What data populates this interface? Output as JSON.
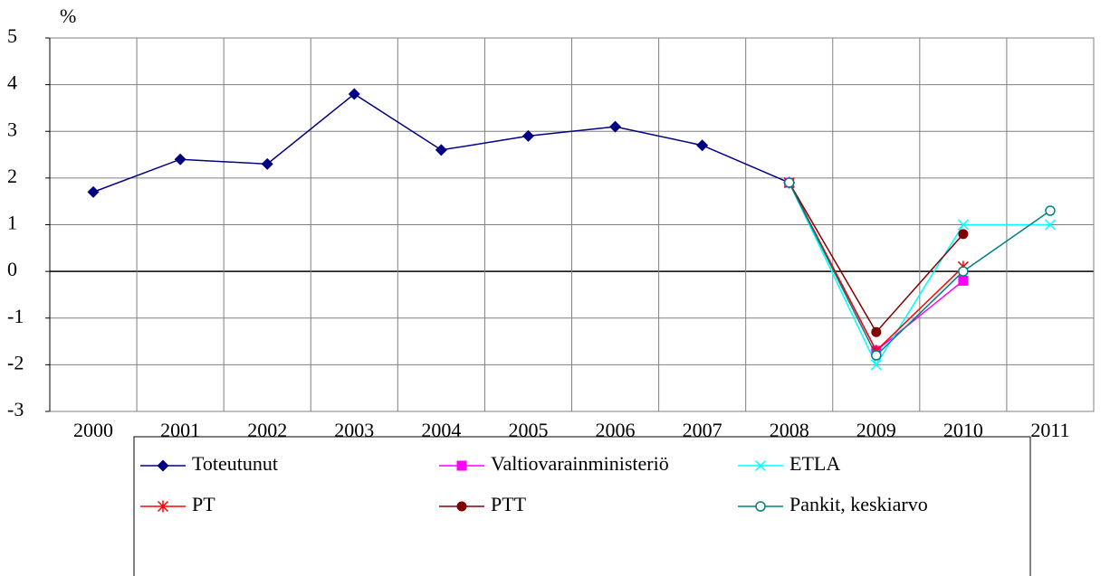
{
  "chart_data": {
    "type": "line",
    "y_label": "%",
    "categories": [
      "2000",
      "2001",
      "2002",
      "2003",
      "2004",
      "2005",
      "2006",
      "2007",
      "2008",
      "2009",
      "2010",
      "2011"
    ],
    "ylim": [
      -3,
      5
    ],
    "yticks": [
      -3,
      -2,
      -1,
      0,
      1,
      2,
      3,
      4,
      5
    ],
    "grid": true,
    "series": [
      {
        "name": "Toteutunut",
        "color": "#000080",
        "marker": "diamond",
        "values": [
          1.7,
          2.4,
          2.3,
          3.8,
          2.6,
          2.9,
          3.1,
          2.7,
          1.9,
          null,
          null,
          null
        ]
      },
      {
        "name": "Valtiovarainministeriö",
        "color": "#ff00ff",
        "marker": "square",
        "values": [
          null,
          null,
          null,
          null,
          null,
          null,
          null,
          null,
          1.9,
          -1.7,
          -0.2,
          null
        ]
      },
      {
        "name": "ETLA",
        "color": "#00ffff",
        "marker": "x",
        "values": [
          null,
          null,
          null,
          null,
          null,
          null,
          null,
          null,
          1.9,
          -2.0,
          1.0,
          1.0
        ]
      },
      {
        "name": "PT",
        "color": "#ff0000",
        "marker": "asterisk",
        "values": [
          null,
          null,
          null,
          null,
          null,
          null,
          null,
          null,
          1.9,
          -1.7,
          0.1,
          null
        ]
      },
      {
        "name": "PTT",
        "color": "#800000",
        "marker": "circle",
        "values": [
          null,
          null,
          null,
          null,
          null,
          null,
          null,
          null,
          1.9,
          -1.3,
          0.8,
          null
        ]
      },
      {
        "name": "Pankit, keskiarvo",
        "color": "#008080",
        "marker": "open-circle",
        "values": [
          null,
          null,
          null,
          null,
          null,
          null,
          null,
          null,
          1.9,
          -1.8,
          0.0,
          1.3
        ]
      }
    ]
  }
}
